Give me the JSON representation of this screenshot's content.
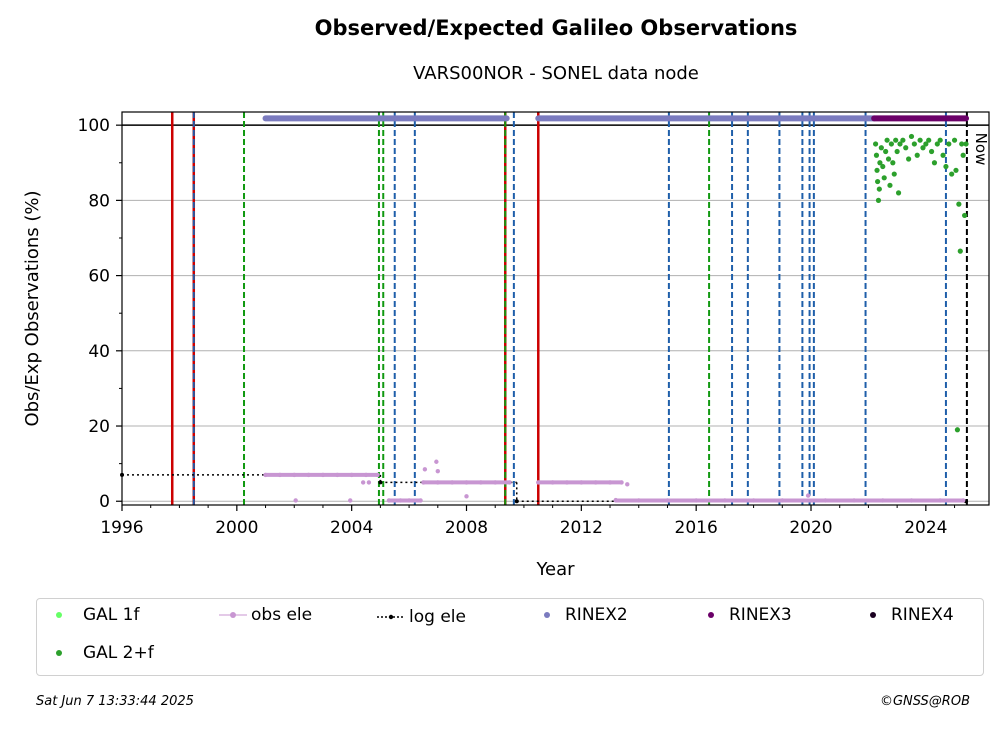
{
  "title": "Observed/Expected Galileo Observations",
  "subtitle": "VARS00NOR - SONEL data node",
  "footer": {
    "timestamp": "Sat Jun  7 13:33:44 2025",
    "copyright": "©GNSS@ROB"
  },
  "legend": {
    "items": [
      {
        "label": "GAL 1f",
        "color": "#66ff66",
        "style": "dot"
      },
      {
        "label": "obs ele",
        "color": "#c896d2",
        "style": "line-dot"
      },
      {
        "label": "log ele",
        "color": "#000000",
        "style": "dotted-dot"
      },
      {
        "label": "RINEX2",
        "color": "#7b7bbf",
        "style": "dot"
      },
      {
        "label": "RINEX3",
        "color": "#6b0068",
        "style": "dot"
      },
      {
        "label": "RINEX4",
        "color": "#1a0020",
        "style": "dot"
      },
      {
        "label": "GAL 2+f",
        "color": "#2ca02c",
        "style": "dot"
      }
    ]
  },
  "chart_data": {
    "type": "scatter",
    "title": "Observed/Expected Galileo Observations",
    "subtitle": "VARS00NOR - SONEL data node",
    "xlabel": "Year",
    "ylabel": "Obs/Exp Observations (%)",
    "xlim": [
      1996,
      2026.2
    ],
    "ylim": [
      -1,
      103.5
    ],
    "xticks": [
      1996,
      2000,
      2004,
      2008,
      2012,
      2016,
      2020,
      2024
    ],
    "yticks": [
      0,
      20,
      40,
      60,
      80,
      100
    ],
    "grid": "horizontal",
    "reference_line": 100,
    "now_label": "Now",
    "now_x": 2025.43,
    "vlines": {
      "red_solid": [
        1997.75,
        1998.5,
        2009.35,
        2010.5
      ],
      "blue_dashed": [
        1998.5,
        2005.5,
        2006.2,
        2009.65,
        2015.05,
        2017.25,
        2017.8,
        2018.9,
        2019.7,
        2019.95,
        2020.1,
        2021.9,
        2024.7
      ],
      "green_dashed": [
        2000.25,
        2004.95,
        2005.1,
        2009.35,
        2016.45
      ]
    },
    "series": [
      {
        "name": "RINEX2",
        "segments": [
          [
            2001.0,
            2009.4
          ],
          [
            2010.5,
            2022.2
          ]
        ],
        "value": 101.8
      },
      {
        "name": "RINEX3",
        "segments": [
          [
            2022.2,
            2025.4
          ]
        ],
        "value": 101.8
      },
      {
        "name": "log ele",
        "steps": [
          [
            1996.0,
            7.0
          ],
          [
            2005.0,
            5.0
          ],
          [
            2009.75,
            0.0
          ],
          [
            2025.4,
            0.0
          ]
        ]
      },
      {
        "name": "obs ele",
        "points": [
          [
            2001.0,
            7
          ],
          [
            2001.5,
            7
          ],
          [
            2002.0,
            7
          ],
          [
            2002.5,
            7
          ],
          [
            2003.0,
            7
          ],
          [
            2003.5,
            7
          ],
          [
            2004.0,
            7
          ],
          [
            2004.5,
            7
          ],
          [
            2004.9,
            7
          ],
          [
            2002.05,
            0.2
          ],
          [
            2003.95,
            0.2
          ],
          [
            2004.4,
            5
          ],
          [
            2004.6,
            5
          ],
          [
            2005.3,
            0.2
          ],
          [
            2005.7,
            0.2
          ],
          [
            2006.0,
            0.2
          ],
          [
            2006.4,
            0.2
          ],
          [
            2006.5,
            5
          ],
          [
            2007.0,
            5
          ],
          [
            2007.5,
            5
          ],
          [
            2008.0,
            5
          ],
          [
            2008.5,
            5
          ],
          [
            2009.0,
            5
          ],
          [
            2009.5,
            5
          ],
          [
            2006.55,
            8.5
          ],
          [
            2006.95,
            10.5
          ],
          [
            2007.0,
            8
          ],
          [
            2008.0,
            1.3
          ],
          [
            2010.5,
            5
          ],
          [
            2011.0,
            5
          ],
          [
            2011.5,
            5
          ],
          [
            2012.0,
            5
          ],
          [
            2012.5,
            5
          ],
          [
            2013.0,
            5
          ],
          [
            2013.4,
            5
          ],
          [
            2013.6,
            4.5
          ],
          [
            2013.2,
            0.3
          ],
          [
            2014.0,
            0.2
          ],
          [
            2015.0,
            0.2
          ],
          [
            2016.0,
            0.2
          ],
          [
            2017.0,
            0.2
          ],
          [
            2018.0,
            0.2
          ],
          [
            2019.0,
            0.2
          ],
          [
            2019.9,
            1.5
          ],
          [
            2020.5,
            0.2
          ],
          [
            2021.5,
            0.2
          ],
          [
            2022.5,
            0.2
          ],
          [
            2023.5,
            0.2
          ],
          [
            2024.5,
            0.2
          ],
          [
            2025.3,
            0.2
          ]
        ]
      },
      {
        "name": "GAL 2+f",
        "points": [
          [
            2022.25,
            95
          ],
          [
            2022.28,
            92
          ],
          [
            2022.3,
            88
          ],
          [
            2022.32,
            85
          ],
          [
            2022.35,
            80
          ],
          [
            2022.38,
            83
          ],
          [
            2022.4,
            90
          ],
          [
            2022.45,
            94
          ],
          [
            2022.5,
            89
          ],
          [
            2022.55,
            86
          ],
          [
            2022.6,
            93
          ],
          [
            2022.65,
            96
          ],
          [
            2022.7,
            91
          ],
          [
            2022.75,
            84
          ],
          [
            2022.8,
            95
          ],
          [
            2022.85,
            90
          ],
          [
            2022.9,
            87
          ],
          [
            2022.95,
            96
          ],
          [
            2023.0,
            93
          ],
          [
            2023.05,
            82
          ],
          [
            2023.1,
            95
          ],
          [
            2023.2,
            96
          ],
          [
            2023.3,
            94
          ],
          [
            2023.4,
            91
          ],
          [
            2023.5,
            97
          ],
          [
            2023.6,
            95
          ],
          [
            2023.7,
            92
          ],
          [
            2023.8,
            96
          ],
          [
            2023.9,
            94
          ],
          [
            2024.0,
            95
          ],
          [
            2024.1,
            96
          ],
          [
            2024.2,
            93
          ],
          [
            2024.3,
            90
          ],
          [
            2024.4,
            95
          ],
          [
            2024.5,
            96
          ],
          [
            2024.6,
            92
          ],
          [
            2024.7,
            89
          ],
          [
            2024.8,
            95
          ],
          [
            2024.9,
            87
          ],
          [
            2025.0,
            96
          ],
          [
            2025.05,
            88
          ],
          [
            2025.1,
            19
          ],
          [
            2025.15,
            79
          ],
          [
            2025.2,
            66.5
          ],
          [
            2025.25,
            95
          ],
          [
            2025.3,
            92
          ],
          [
            2025.35,
            76
          ],
          [
            2025.4,
            95
          ]
        ]
      }
    ]
  }
}
